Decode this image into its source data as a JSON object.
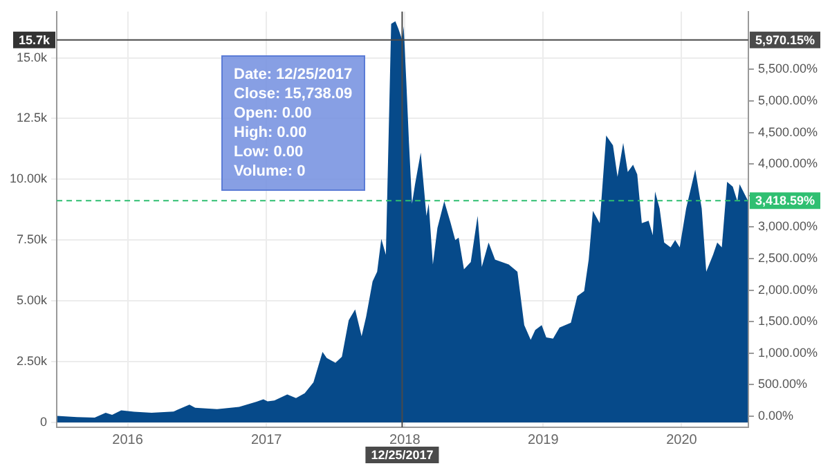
{
  "chart_data": {
    "type": "area",
    "color": "#064a8a",
    "x": [
      "2015-06-29",
      "2015-08-20",
      "2015-10-06",
      "2015-11-04",
      "2015-11-21",
      "2015-12-15",
      "2016-01-18",
      "2016-03-04",
      "2016-05-01",
      "2016-06-12",
      "2016-06-27",
      "2016-08-24",
      "2016-10-21",
      "2016-12-06",
      "2016-12-24",
      "2017-01-04",
      "2017-01-22",
      "2017-02-25",
      "2017-03-20",
      "2017-04-12",
      "2017-05-05",
      "2017-05-29",
      "2017-06-09",
      "2017-07-02",
      "2017-07-19",
      "2017-08-06",
      "2017-08-23",
      "2017-09-09",
      "2017-09-21",
      "2017-10-08",
      "2017-10-20",
      "2017-10-31",
      "2017-11-12",
      "2017-11-19",
      "2017-11-26",
      "2017-12-07",
      "2017-12-15",
      "2017-12-25",
      "2017-12-29",
      "2018-01-05",
      "2018-01-12",
      "2018-01-20",
      "2018-01-28",
      "2018-02-12",
      "2018-02-27",
      "2018-03-05",
      "2018-03-16",
      "2018-03-28",
      "2018-04-15",
      "2018-05-02",
      "2018-05-14",
      "2018-05-23",
      "2018-06-06",
      "2018-06-24",
      "2018-07-12",
      "2018-07-23",
      "2018-08-10",
      "2018-08-27",
      "2018-10-02",
      "2018-10-25",
      "2018-11-12",
      "2018-11-29",
      "2018-12-11",
      "2018-12-28",
      "2019-01-09",
      "2019-01-27",
      "2019-02-13",
      "2019-03-15",
      "2019-04-01",
      "2019-04-19",
      "2019-05-01",
      "2019-05-12",
      "2019-05-30",
      "2019-06-16",
      "2019-07-04",
      "2019-07-16",
      "2019-07-31",
      "2019-08-12",
      "2019-08-26",
      "2019-09-06",
      "2019-09-18",
      "2019-10-06",
      "2019-10-17",
      "2019-10-23",
      "2019-11-04",
      "2019-11-16",
      "2019-12-03",
      "2019-12-15",
      "2019-12-27",
      "2020-01-13",
      "2020-02-06",
      "2020-02-23",
      "2020-03-06",
      "2020-03-24",
      "2020-04-04",
      "2020-04-16",
      "2020-04-30",
      "2020-05-15",
      "2020-05-27",
      "2020-06-02",
      "2020-06-24"
    ],
    "values": [
      270,
      220,
      200,
      400,
      310,
      500,
      440,
      400,
      450,
      730,
      600,
      550,
      640,
      850,
      950,
      870,
      900,
      1150,
      1000,
      1200,
      1650,
      2900,
      2650,
      2450,
      2700,
      4200,
      4650,
      3550,
      4350,
      5800,
      6200,
      7550,
      6900,
      11600,
      16400,
      16500,
      16200,
      15738.09,
      16300,
      14000,
      11500,
      9000,
      9800,
      11100,
      8500,
      9000,
      6500,
      8000,
      9100,
      8200,
      7500,
      7600,
      6300,
      6600,
      8500,
      6400,
      7400,
      6700,
      6500,
      6200,
      4000,
      3400,
      3800,
      4000,
      3500,
      3450,
      3900,
      4100,
      5200,
      5400,
      6700,
      8700,
      8200,
      11800,
      11400,
      10100,
      11500,
      10300,
      10600,
      10200,
      8200,
      8300,
      7700,
      9500,
      8800,
      7400,
      7200,
      7500,
      7200,
      8800,
      10400,
      8800,
      6200,
      6900,
      7400,
      7200,
      9900,
      9700,
      9100,
      9800,
      9122
    ],
    "xlim": [
      "2015-06-28",
      "2020-06-25"
    ],
    "xticks": [
      {
        "value": "2016-01-01",
        "label": "2016"
      },
      {
        "value": "2017-01-01",
        "label": "2017"
      },
      {
        "value": "2018-01-01",
        "label": "2018"
      },
      {
        "value": "2019-01-01",
        "label": "2019"
      },
      {
        "value": "2020-01-01",
        "label": "2020"
      }
    ],
    "ylim": [
      -200,
      16900
    ],
    "yticks": [
      0,
      {
        "value": 2500,
        "label": "2.50k"
      },
      {
        "value": 5000,
        "label": "5.00k"
      },
      {
        "value": 7500,
        "label": "7.50k"
      },
      {
        "value": 10000,
        "label": "10.00k"
      },
      {
        "value": 12500,
        "label": "12.5k"
      },
      {
        "value": 15000,
        "label": "15.0k"
      }
    ],
    "y2lim": [
      -177,
      6418
    ],
    "y2ticks": [
      {
        "value": 0,
        "label": "0.00%"
      },
      {
        "value": 500,
        "label": "500.00%"
      },
      {
        "value": 1000,
        "label": "1,000.00%"
      },
      {
        "value": 1500,
        "label": "1,500.00%"
      },
      {
        "value": 2000,
        "label": "2,000.00%"
      },
      {
        "value": 2500,
        "label": "2,500.00%"
      },
      {
        "value": 3000,
        "label": "3,000.00%"
      },
      {
        "value": 3500,
        "label": null
      },
      {
        "value": 4000,
        "label": "4,000.00%"
      },
      {
        "value": 4500,
        "label": "4,500.00%"
      },
      {
        "value": 5000,
        "label": "5,000.00%"
      },
      {
        "value": 5500,
        "label": "5,500.00%"
      }
    ],
    "grid": true,
    "ref_lines": [
      {
        "axis": "x",
        "value": "2017-12-25",
        "label": "12/25/2017",
        "color": "#4a4a4a"
      },
      {
        "axis": "y2",
        "value": 5970.15,
        "label": "5,970.15%",
        "color": "#4a4a4a"
      },
      {
        "axis": "y2",
        "value": 3418.59,
        "label": "3,418.59%",
        "color": "#2fbf71",
        "line_style": "dashed"
      }
    ],
    "annotations": [
      "Date: 12/25/2017\nClose: 15,738.09\nOpen: 0.00\nHigh: 0.00\nLow: 0.00\nVolume: 0",
      {
        "text": "15.7k",
        "y": 15738.09
      }
    ]
  }
}
